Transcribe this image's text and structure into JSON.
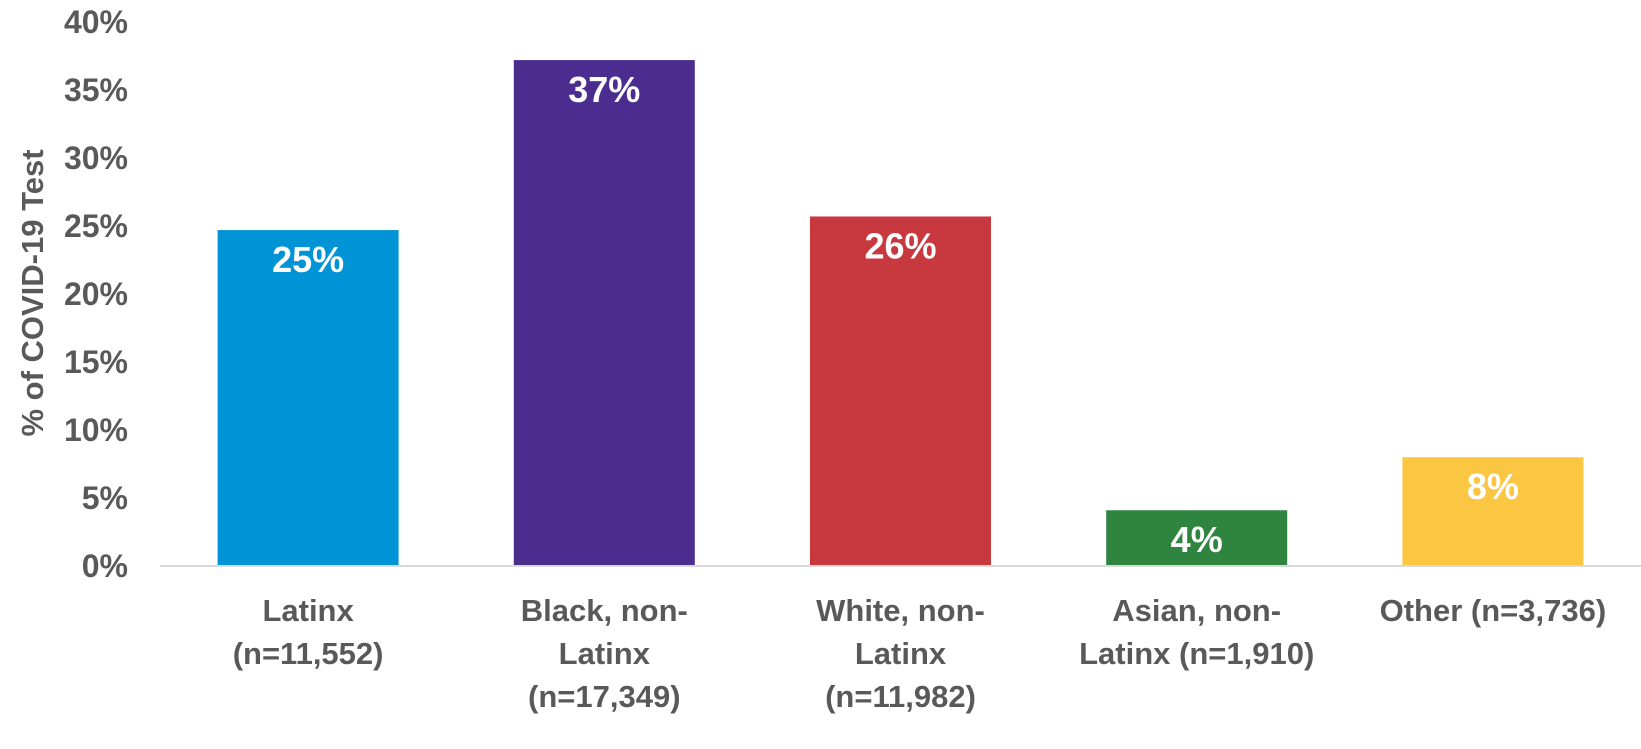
{
  "chart_data": {
    "type": "bar",
    "title": "",
    "xlabel": "",
    "ylabel": "% of COVID-19 Test",
    "ylim": [
      0,
      40
    ],
    "yticks": [
      "0%",
      "5%",
      "10%",
      "15%",
      "20%",
      "25%",
      "30%",
      "35%",
      "40%"
    ],
    "categories": [
      [
        "Latinx",
        "(n=11,552)"
      ],
      [
        "Black, non-",
        "Latinx",
        "(n=17,349)"
      ],
      [
        "White, non-",
        "Latinx",
        "(n=11,982)"
      ],
      [
        "Asian, non-",
        "Latinx (n=1,910)"
      ],
      [
        "Other (n=3,736)"
      ]
    ],
    "values": [
      24.7,
      37.2,
      25.7,
      4.1,
      8.0
    ],
    "data_labels": [
      "25%",
      "37%",
      "26%",
      "4%",
      "8%"
    ],
    "colors": [
      "#0093D5",
      "#4B2C8F",
      "#C8383F",
      "#2F8540",
      "#FBC641"
    ],
    "grid": false,
    "legend": "none"
  }
}
